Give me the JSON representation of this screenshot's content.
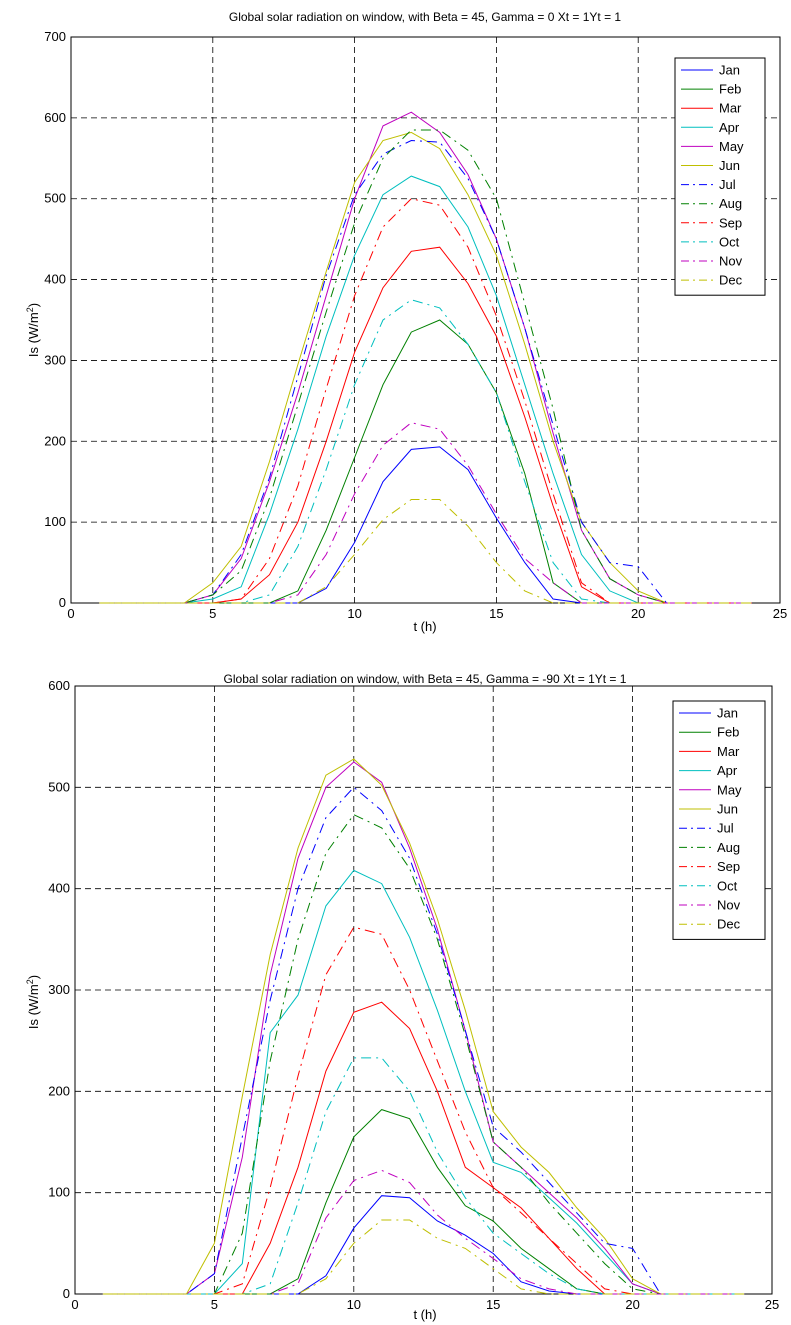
{
  "months": [
    "Jan",
    "Feb",
    "Mar",
    "Apr",
    "May",
    "Jun",
    "Jul",
    "Aug",
    "Sep",
    "Oct",
    "Nov",
    "Dec"
  ],
  "colors": [
    "#0000ff",
    "#008000",
    "#ff0000",
    "#00bfbf",
    "#bf00bf",
    "#bfbf00",
    "#0000ff",
    "#008000",
    "#ff0000",
    "#00bfbf",
    "#bf00bf",
    "#bfbf00"
  ],
  "dashed": [
    false,
    false,
    false,
    false,
    false,
    false,
    true,
    true,
    true,
    true,
    true,
    true
  ],
  "hours": [
    1,
    2,
    3,
    4,
    5,
    6,
    7,
    8,
    9,
    10,
    11,
    12,
    13,
    14,
    15,
    16,
    17,
    18,
    19,
    20,
    21,
    22,
    23,
    24
  ],
  "chart_data": [
    {
      "type": "line",
      "title": "Global solar radiation on window, with Beta = 45, Gamma = 0 Xt = 1Yt = 1",
      "xlabel": "t (h)",
      "ylabel": "Is (W/m2)",
      "ylabel_main": "Is (W/m",
      "ylabel_sup": "2",
      "ylabel_close": ")",
      "xlim": [
        0,
        25
      ],
      "ylim": [
        0,
        700
      ],
      "xticks": [
        0,
        5,
        10,
        15,
        20,
        25
      ],
      "yticks": [
        0,
        100,
        200,
        300,
        400,
        500,
        600,
        700
      ],
      "grid": true,
      "legend_position": "top-right",
      "x": [
        1,
        2,
        3,
        4,
        5,
        6,
        7,
        8,
        9,
        10,
        11,
        12,
        13,
        14,
        15,
        16,
        17,
        18,
        19,
        20,
        21,
        22,
        23,
        24
      ],
      "series": [
        {
          "name": "Jan",
          "values": [
            0,
            0,
            0,
            0,
            0,
            0,
            0,
            0,
            18,
            75,
            150,
            190,
            193,
            165,
            105,
            50,
            5,
            0,
            0,
            0,
            0,
            0,
            0,
            0
          ]
        },
        {
          "name": "Feb",
          "values": [
            0,
            0,
            0,
            0,
            0,
            0,
            0,
            15,
            90,
            180,
            270,
            335,
            350,
            320,
            260,
            160,
            25,
            0,
            0,
            0,
            0,
            0,
            0,
            0
          ]
        },
        {
          "name": "Mar",
          "values": [
            0,
            0,
            0,
            0,
            0,
            5,
            35,
            100,
            200,
            310,
            390,
            435,
            440,
            395,
            330,
            230,
            120,
            20,
            0,
            0,
            0,
            0,
            0,
            0
          ]
        },
        {
          "name": "Apr",
          "values": [
            0,
            0,
            0,
            0,
            5,
            20,
            110,
            215,
            330,
            430,
            505,
            528,
            515,
            465,
            380,
            270,
            160,
            60,
            15,
            0,
            0,
            0,
            0,
            0
          ]
        },
        {
          "name": "May",
          "values": [
            0,
            0,
            0,
            0,
            10,
            55,
            150,
            260,
            380,
            500,
            590,
            607,
            582,
            530,
            450,
            340,
            210,
            90,
            30,
            10,
            0,
            0,
            0,
            0
          ]
        },
        {
          "name": "Jun",
          "values": [
            0,
            0,
            0,
            0,
            25,
            70,
            175,
            295,
            410,
            520,
            572,
            582,
            562,
            505,
            430,
            320,
            200,
            100,
            50,
            15,
            0,
            0,
            0,
            0
          ]
        },
        {
          "name": "Jul",
          "values": [
            0,
            0,
            0,
            0,
            10,
            60,
            155,
            280,
            405,
            505,
            555,
            572,
            570,
            525,
            450,
            340,
            220,
            100,
            50,
            45,
            0,
            0,
            0,
            0
          ]
        },
        {
          "name": "Aug",
          "values": [
            0,
            0,
            0,
            0,
            10,
            40,
            130,
            245,
            360,
            470,
            550,
            585,
            585,
            560,
            500,
            370,
            240,
            90,
            30,
            10,
            0,
            0,
            0,
            0
          ]
        },
        {
          "name": "Sep",
          "values": [
            0,
            0,
            0,
            0,
            0,
            5,
            55,
            145,
            265,
            380,
            465,
            500,
            492,
            440,
            355,
            250,
            135,
            25,
            0,
            0,
            0,
            0,
            0,
            0
          ]
        },
        {
          "name": "Oct",
          "values": [
            0,
            0,
            0,
            0,
            0,
            0,
            10,
            70,
            165,
            270,
            350,
            375,
            365,
            320,
            260,
            150,
            50,
            5,
            0,
            0,
            0,
            0,
            0,
            0
          ]
        },
        {
          "name": "Nov",
          "values": [
            0,
            0,
            0,
            0,
            0,
            0,
            0,
            10,
            60,
            135,
            195,
            223,
            215,
            170,
            110,
            55,
            25,
            0,
            0,
            0,
            0,
            0,
            0,
            0
          ]
        },
        {
          "name": "Dec",
          "values": [
            0,
            0,
            0,
            0,
            0,
            0,
            0,
            0,
            20,
            60,
            103,
            128,
            128,
            95,
            50,
            15,
            0,
            0,
            0,
            0,
            0,
            0,
            0,
            0
          ]
        }
      ]
    },
    {
      "type": "line",
      "title": "Global solar radiation on window, with Beta = 45, Gamma = -90 Xt = 1Yt = 1",
      "xlabel": "t (h)",
      "ylabel": "Is (W/m2)",
      "ylabel_main": "Is (W/m",
      "ylabel_sup": "2",
      "ylabel_close": ")",
      "xlim": [
        0,
        25
      ],
      "ylim": [
        0,
        600
      ],
      "xticks": [
        0,
        5,
        10,
        15,
        20,
        25
      ],
      "yticks": [
        0,
        100,
        200,
        300,
        400,
        500,
        600
      ],
      "grid": true,
      "legend_position": "top-right",
      "x": [
        1,
        2,
        3,
        4,
        5,
        6,
        7,
        8,
        9,
        10,
        11,
        12,
        13,
        14,
        15,
        16,
        17,
        18,
        19,
        20,
        21,
        22,
        23,
        24
      ],
      "series": [
        {
          "name": "Jan",
          "values": [
            0,
            0,
            0,
            0,
            0,
            0,
            0,
            0,
            18,
            65,
            97,
            95,
            72,
            58,
            40,
            12,
            3,
            0,
            0,
            0,
            0,
            0,
            0,
            0
          ]
        },
        {
          "name": "Feb",
          "values": [
            0,
            0,
            0,
            0,
            0,
            0,
            0,
            15,
            90,
            155,
            182,
            173,
            125,
            87,
            72,
            45,
            25,
            5,
            0,
            0,
            0,
            0,
            0,
            0
          ]
        },
        {
          "name": "Mar",
          "values": [
            0,
            0,
            0,
            0,
            0,
            0,
            50,
            125,
            220,
            278,
            288,
            262,
            200,
            125,
            105,
            85,
            55,
            25,
            0,
            0,
            0,
            0,
            0,
            0
          ]
        },
        {
          "name": "Apr",
          "values": [
            0,
            0,
            0,
            0,
            0,
            30,
            258,
            295,
            383,
            418,
            405,
            352,
            280,
            200,
            130,
            120,
            95,
            70,
            40,
            10,
            0,
            0,
            0,
            0
          ]
        },
        {
          "name": "May",
          "values": [
            0,
            0,
            0,
            0,
            20,
            135,
            315,
            430,
            500,
            525,
            505,
            440,
            360,
            260,
            150,
            125,
            100,
            75,
            45,
            10,
            0,
            0,
            0,
            0
          ]
        },
        {
          "name": "Jun",
          "values": [
            0,
            0,
            0,
            0,
            50,
            195,
            335,
            440,
            512,
            528,
            502,
            445,
            370,
            280,
            180,
            145,
            120,
            85,
            55,
            15,
            0,
            0,
            0,
            0
          ]
        },
        {
          "name": "Jul",
          "values": [
            0,
            0,
            0,
            0,
            20,
            155,
            290,
            400,
            470,
            500,
            477,
            430,
            355,
            260,
            165,
            140,
            110,
            80,
            50,
            45,
            0,
            0,
            0,
            0
          ]
        },
        {
          "name": "Aug",
          "values": [
            0,
            0,
            0,
            0,
            0,
            60,
            230,
            350,
            435,
            473,
            460,
            420,
            350,
            255,
            150,
            125,
            90,
            60,
            30,
            5,
            0,
            0,
            0,
            0
          ]
        },
        {
          "name": "Sep",
          "values": [
            0,
            0,
            0,
            0,
            0,
            10,
            105,
            215,
            315,
            362,
            355,
            300,
            230,
            160,
            105,
            80,
            55,
            30,
            5,
            0,
            0,
            0,
            0,
            0
          ]
        },
        {
          "name": "Oct",
          "values": [
            0,
            0,
            0,
            0,
            0,
            0,
            10,
            90,
            180,
            233,
            233,
            200,
            140,
            95,
            60,
            40,
            20,
            5,
            0,
            0,
            0,
            0,
            0,
            0
          ]
        },
        {
          "name": "Nov",
          "values": [
            0,
            0,
            0,
            0,
            0,
            0,
            0,
            10,
            75,
            112,
            122,
            110,
            78,
            55,
            35,
            15,
            5,
            0,
            0,
            0,
            0,
            0,
            0,
            0
          ]
        },
        {
          "name": "Dec",
          "values": [
            0,
            0,
            0,
            0,
            0,
            0,
            0,
            0,
            15,
            50,
            73,
            73,
            55,
            45,
            25,
            5,
            0,
            0,
            0,
            0,
            0,
            0,
            0,
            0
          ]
        }
      ]
    }
  ]
}
